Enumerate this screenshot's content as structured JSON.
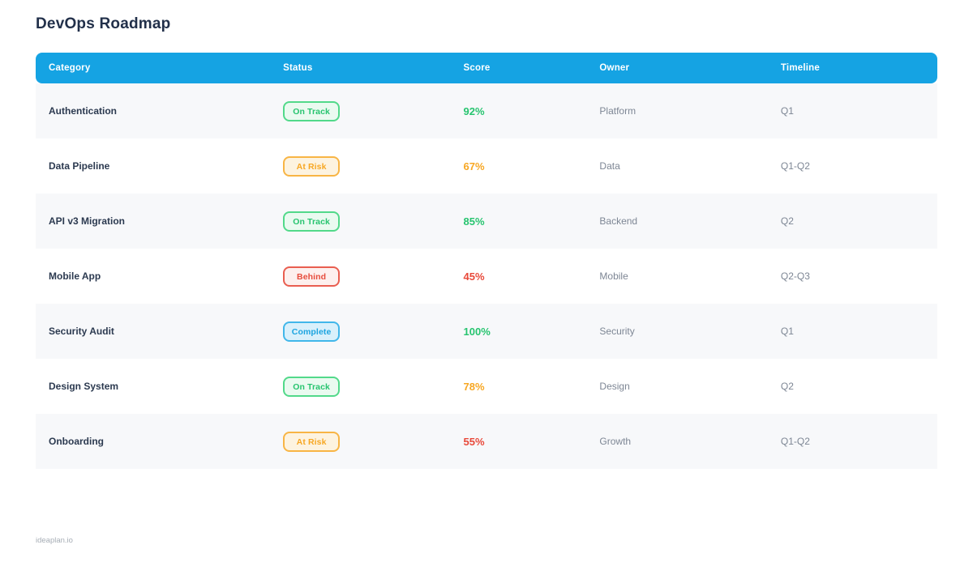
{
  "page": {
    "title": "DevOps Roadmap",
    "footer": "ideaplan.io"
  },
  "colors": {
    "header_bg": "#15a3e3",
    "row_stripe": "#f7f8fa",
    "status_green": "#27c46f",
    "status_orange": "#f7a723",
    "status_red": "#e74c3c",
    "status_blue": "#1ba4e0",
    "title_text": "#22304a",
    "muted_text": "#7d8694"
  },
  "table": {
    "columns": [
      {
        "label": "Category"
      },
      {
        "label": "Status"
      },
      {
        "label": "Score"
      },
      {
        "label": "Owner"
      },
      {
        "label": "Timeline"
      }
    ],
    "rows": [
      {
        "category": "Authentication",
        "status": "On Track",
        "variant": "on-track",
        "score": "92%",
        "score_color": "green",
        "owner": "Platform",
        "timeline": "Q1"
      },
      {
        "category": "Data Pipeline",
        "status": "At Risk",
        "variant": "at-risk",
        "score": "67%",
        "score_color": "orange",
        "owner": "Data",
        "timeline": "Q1-Q2"
      },
      {
        "category": "API v3 Migration",
        "status": "On Track",
        "variant": "on-track",
        "score": "85%",
        "score_color": "green",
        "owner": "Backend",
        "timeline": "Q2"
      },
      {
        "category": "Mobile App",
        "status": "Behind",
        "variant": "behind",
        "score": "45%",
        "score_color": "red",
        "owner": "Mobile",
        "timeline": "Q2-Q3"
      },
      {
        "category": "Security Audit",
        "status": "Complete",
        "variant": "complete",
        "score": "100%",
        "score_color": "green",
        "owner": "Security",
        "timeline": "Q1"
      },
      {
        "category": "Design System",
        "status": "On Track",
        "variant": "on-track",
        "score": "78%",
        "score_color": "orange",
        "owner": "Design",
        "timeline": "Q2"
      },
      {
        "category": "Onboarding",
        "status": "At Risk",
        "variant": "at-risk",
        "score": "55%",
        "score_color": "red",
        "owner": "Growth",
        "timeline": "Q1-Q2"
      }
    ]
  }
}
